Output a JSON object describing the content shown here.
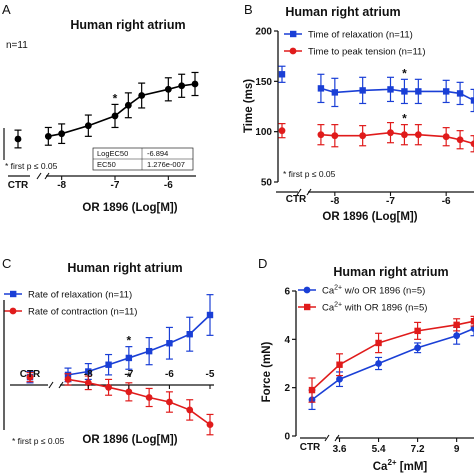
{
  "chart_data": [
    {
      "panel": "A",
      "type": "line",
      "title": "Human right atrium",
      "n_label": "n=11",
      "xlabel": "OR 1896 (Log[M])",
      "ylabel": "",
      "control_label": "CTR",
      "x_ticks": [
        "-8",
        "-7",
        "-6"
      ],
      "footnote": "* first p ≤ 0.05",
      "table": [
        {
          "key": "LogEC50",
          "value": "-6.894"
        },
        {
          "key": "EC50",
          "value": "1.276e-007"
        }
      ],
      "series": [
        {
          "name": "",
          "color": "#000000",
          "marker": "circle",
          "x": [
            "CTR",
            -8.25,
            -8,
            -7.5,
            -7,
            -6.75,
            -6.5,
            -6,
            -5.75,
            -5.5
          ],
          "y": [
            0.0,
            0.3,
            0.6,
            1.5,
            2.6,
            3.8,
            4.9,
            5.6,
            6.0,
            6.2
          ],
          "err": [
            1.0,
            1.0,
            1.1,
            1.2,
            1.3,
            1.4,
            1.4,
            1.3,
            1.3,
            1.3
          ]
        }
      ],
      "annotations": [
        {
          "text": "*",
          "at_x": -7
        }
      ]
    },
    {
      "panel": "B",
      "type": "line",
      "title": "Human right atrium",
      "xlabel": "OR 1896 (Log[M])",
      "ylabel": "Time (ms)",
      "ylim": [
        50,
        200
      ],
      "y_ticks": [
        "50",
        "100",
        "150",
        "200"
      ],
      "x_ticks": [
        "-8",
        "-7",
        "-6"
      ],
      "control_label": "CTR",
      "footnote": "* first p ≤ 0.05",
      "series": [
        {
          "name": "Time of relaxation (n=11)",
          "color": "#1a3fd6",
          "marker": "square",
          "x": [
            "CTR",
            -8.25,
            -8,
            -7.5,
            -7,
            -6.75,
            -6.5,
            -6,
            -5.75,
            -5.5
          ],
          "y": [
            157,
            143,
            139,
            141,
            142,
            140,
            140,
            140,
            138,
            131
          ],
          "err": [
            8,
            14,
            14,
            13,
            12,
            12,
            12,
            11,
            11,
            11
          ]
        },
        {
          "name": "Time to peak tension (n=11)",
          "color": "#e01b1b",
          "marker": "circle",
          "x": [
            "CTR",
            -8.25,
            -8,
            -7.5,
            -7,
            -6.75,
            -6.5,
            -6,
            -5.75,
            -5.5
          ],
          "y": [
            101,
            97,
            96,
            96,
            99,
            97,
            97,
            95,
            92,
            88
          ],
          "err": [
            7,
            10,
            11,
            10,
            10,
            10,
            10,
            9,
            9,
            8
          ]
        }
      ],
      "annotations": [
        {
          "text": "*",
          "at_x": -6.75,
          "series": 0
        },
        {
          "text": "*",
          "at_x": -6.75,
          "series": 1
        }
      ]
    },
    {
      "panel": "C",
      "type": "line",
      "title": "Human right atrium",
      "xlabel": "OR 1896 (Log[M])",
      "ylabel": "",
      "control_label": "CTR",
      "x_ticks": [
        "-8",
        "-7",
        "-6",
        "-5"
      ],
      "footnote": "* first p ≤ 0.05",
      "series": [
        {
          "name": "Rate of relaxation (n=11)",
          "color": "#1a3fd6",
          "marker": "square",
          "x": [
            "CTR",
            -8.5,
            -8,
            -7.5,
            -7,
            -6.5,
            -6,
            -5.5,
            -5
          ],
          "y": [
            0.0,
            0.2,
            0.5,
            1.1,
            1.7,
            2.3,
            3.0,
            3.8,
            5.5
          ],
          "err": [
            0.5,
            0.6,
            0.7,
            0.9,
            1.0,
            1.2,
            1.4,
            1.5,
            1.8
          ]
        },
        {
          "name": "Rate of contraction (n=11)",
          "color": "#e01b1b",
          "marker": "circle",
          "x": [
            "CTR",
            -8.5,
            -8,
            -7.5,
            -7,
            -6.5,
            -6,
            -5.5,
            -5
          ],
          "y": [
            0.0,
            -0.2,
            -0.5,
            -0.9,
            -1.3,
            -1.8,
            -2.2,
            -2.9,
            -4.2
          ],
          "err": [
            0.4,
            0.5,
            0.6,
            0.7,
            0.8,
            0.8,
            0.9,
            0.9,
            0.9
          ]
        }
      ],
      "annotations": [
        {
          "text": "*",
          "at_x": -7,
          "series": 0
        },
        {
          "text": "*",
          "at_x": -7,
          "series": 1
        }
      ]
    },
    {
      "panel": "D",
      "type": "line",
      "title": "Human right atrium",
      "xlabel": "Ca",
      "xlabel_sup": "2+",
      "xlabel_unit": " [mM]",
      "ylabel": "Force (mN)",
      "ylim": [
        0,
        6
      ],
      "y_ticks": [
        "0",
        "2",
        "4",
        "6"
      ],
      "x_ticks": [
        "3.6",
        "5.4",
        "7.2",
        "9"
      ],
      "control_label": "CTR",
      "series": [
        {
          "name": "Ca",
          "name_sup": "2+",
          "name_rest": " w/o OR 1896 (n=5)",
          "color": "#1a3fd6",
          "marker": "circle",
          "x": [
            "CTR",
            3.6,
            5.4,
            7.2,
            9.0,
            9.8
          ],
          "y": [
            1.5,
            2.35,
            3.0,
            3.65,
            4.15,
            4.45
          ],
          "err": [
            0.4,
            0.3,
            0.25,
            0.2,
            0.35,
            0.3
          ]
        },
        {
          "name": "Ca",
          "name_sup": "2+",
          "name_rest": " with OR 1896 (n=5)",
          "color": "#e01b1b",
          "marker": "square",
          "x": [
            "CTR",
            3.6,
            5.4,
            7.2,
            9.0,
            9.8
          ],
          "y": [
            1.9,
            2.95,
            3.85,
            4.35,
            4.6,
            4.75
          ],
          "err": [
            0.5,
            0.45,
            0.4,
            0.35,
            0.25,
            0.2
          ]
        }
      ]
    }
  ]
}
